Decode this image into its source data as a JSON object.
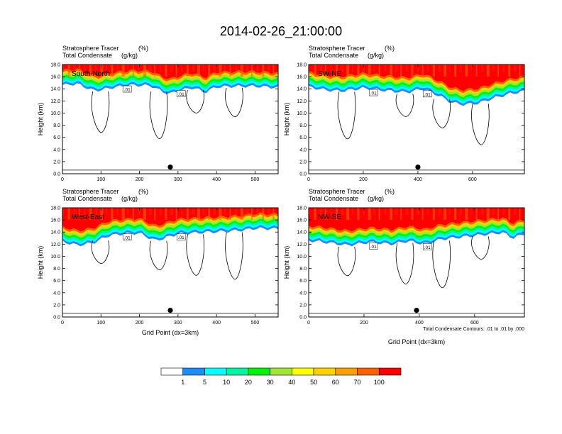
{
  "title": "2014-02-26_21:00:00",
  "panel_header": {
    "line1_name": "Stratosphere Tracer",
    "line1_unit": "(%)",
    "line2_name": "Total Condensate",
    "line2_unit": "(g/kg)"
  },
  "ylabel": "Height (km)",
  "xlabel": "Grid Point (dx=3km)",
  "contour_note": "Total Condensate Contours: .01 to .01 by .000",
  "contour_label": ".01",
  "colorbar": {
    "colors": [
      "#ffffff",
      "#1e8cff",
      "#00ffff",
      "#00f6a0",
      "#00f500",
      "#a0e632",
      "#ffff00",
      "#ffd200",
      "#ffa000",
      "#ff5f00",
      "#ff0000"
    ],
    "labels": [
      "1",
      "5",
      "10",
      "20",
      "30",
      "40",
      "50",
      "60",
      "70",
      "100"
    ]
  },
  "chart_data": [
    {
      "type": "heatmap",
      "panel_label": "South-North",
      "xlim": [
        0,
        560
      ],
      "xticks": [
        "0",
        "100",
        "200",
        "300",
        "400",
        "500"
      ],
      "xtick_values": [
        0,
        100,
        200,
        300,
        400,
        500
      ],
      "ylim": [
        0,
        18
      ],
      "yticks": [
        "0.0",
        "2.0",
        "4.0",
        "6.0",
        "8.0",
        "10.0",
        "12.0",
        "14.0",
        "16.0",
        "18.0"
      ],
      "marker_x": 280,
      "tracer_band_base_km": [
        [
          0,
          14.6
        ],
        [
          40,
          14.8
        ],
        [
          80,
          13.7
        ],
        [
          100,
          13.8
        ],
        [
          130,
          14.2
        ],
        [
          180,
          14.6
        ],
        [
          230,
          14.5
        ],
        [
          260,
          13.5
        ],
        [
          280,
          13.2
        ],
        [
          310,
          13.8
        ],
        [
          340,
          14.2
        ],
        [
          370,
          13.4
        ],
        [
          400,
          14.3
        ],
        [
          450,
          14.4
        ],
        [
          500,
          14.4
        ],
        [
          560,
          14.2
        ]
      ]
    },
    {
      "type": "heatmap",
      "panel_label": "SW-NE",
      "xlim": [
        0,
        790
      ],
      "xticks": [
        "0",
        "200",
        "400",
        "600"
      ],
      "xtick_values": [
        0,
        200,
        400,
        600
      ],
      "ylim": [
        0,
        18
      ],
      "yticks": [
        "0.0",
        "2.0",
        "4.0",
        "6.0",
        "8.0",
        "10.0",
        "12.0",
        "14.0",
        "16.0",
        "18.0"
      ],
      "marker_x": 400,
      "tracer_band_base_km": [
        [
          0,
          14.3
        ],
        [
          60,
          13.8
        ],
        [
          120,
          13.6
        ],
        [
          200,
          14.1
        ],
        [
          280,
          13.7
        ],
        [
          360,
          13.4
        ],
        [
          420,
          14.0
        ],
        [
          480,
          12.8
        ],
        [
          520,
          11.8
        ],
        [
          560,
          11.4
        ],
        [
          620,
          11.6
        ],
        [
          680,
          12.5
        ],
        [
          740,
          13.2
        ],
        [
          790,
          13.6
        ]
      ]
    },
    {
      "type": "heatmap",
      "panel_label": "West-East",
      "xlim": [
        0,
        560
      ],
      "xticks": [
        "0",
        "100",
        "200",
        "300",
        "400",
        "500"
      ],
      "xtick_values": [
        0,
        100,
        200,
        300,
        400,
        500
      ],
      "ylim": [
        0,
        18
      ],
      "yticks": [
        "0.0",
        "2.0",
        "4.0",
        "6.0",
        "8.0",
        "10.0",
        "12.0",
        "14.0",
        "16.0",
        "18.0"
      ],
      "marker_x": 280,
      "tracer_band_base_km": [
        [
          0,
          12.4
        ],
        [
          40,
          11.8
        ],
        [
          80,
          12.2
        ],
        [
          120,
          13.4
        ],
        [
          160,
          13.7
        ],
        [
          200,
          13.8
        ],
        [
          240,
          12.6
        ],
        [
          260,
          12.9
        ],
        [
          300,
          13.7
        ],
        [
          360,
          13.9
        ],
        [
          420,
          14.1
        ],
        [
          470,
          14.3
        ],
        [
          500,
          14.6
        ],
        [
          560,
          14.5
        ]
      ]
    },
    {
      "type": "heatmap",
      "panel_label": "NW-SE",
      "xlim": [
        0,
        780
      ],
      "xticks": [
        "0",
        "200",
        "400",
        "600"
      ],
      "xtick_values": [
        0,
        200,
        400,
        600
      ],
      "ylim": [
        0,
        18
      ],
      "yticks": [
        "0.0",
        "2.0",
        "4.0",
        "6.0",
        "8.0",
        "10.0",
        "12.0",
        "14.0",
        "16.0",
        "18.0"
      ],
      "marker_x": 390,
      "tracer_band_base_km": [
        [
          0,
          12.6
        ],
        [
          60,
          12.3
        ],
        [
          140,
          11.8
        ],
        [
          220,
          12.3
        ],
        [
          300,
          12.0
        ],
        [
          360,
          12.5
        ],
        [
          420,
          12.0
        ],
        [
          480,
          12.8
        ],
        [
          560,
          13.2
        ],
        [
          640,
          13.6
        ],
        [
          700,
          13.9
        ],
        [
          740,
          13.0
        ],
        [
          780,
          13.7
        ]
      ]
    }
  ]
}
